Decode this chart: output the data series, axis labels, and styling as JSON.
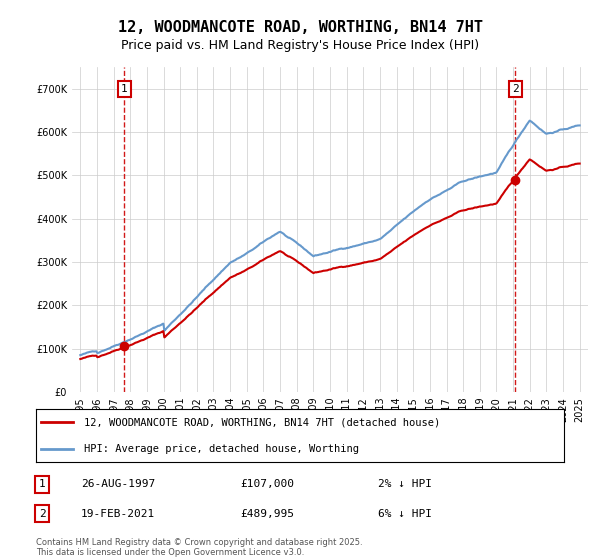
{
  "title": "12, WOODMANCOTE ROAD, WORTHING, BN14 7HT",
  "subtitle": "Price paid vs. HM Land Registry's House Price Index (HPI)",
  "red_label": "12, WOODMANCOTE ROAD, WORTHING, BN14 7HT (detached house)",
  "blue_label": "HPI: Average price, detached house, Worthing",
  "footnote": "Contains HM Land Registry data © Crown copyright and database right 2025.\nThis data is licensed under the Open Government Licence v3.0.",
  "marker1_label": "1",
  "marker1_date": "26-AUG-1997",
  "marker1_price": "£107,000",
  "marker1_hpi": "2% ↓ HPI",
  "marker1_year": 1997.65,
  "marker1_value": 107000,
  "marker2_label": "2",
  "marker2_date": "19-FEB-2021",
  "marker2_price": "£489,995",
  "marker2_hpi": "6% ↓ HPI",
  "marker2_year": 2021.13,
  "marker2_value": 489995,
  "ylim_max": 750000,
  "background_color": "#ffffff",
  "grid_color": "#cccccc",
  "red_color": "#cc0000",
  "blue_color": "#6699cc"
}
